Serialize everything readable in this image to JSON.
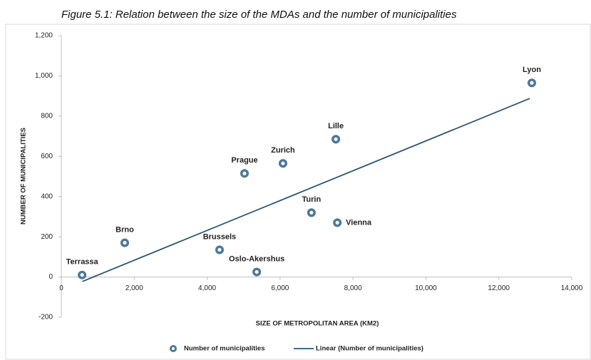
{
  "chart_data": {
    "type": "scatter",
    "title": "Figure 5.1: Relation between the size of the MDAs and the number of municipalities",
    "x_label": "SIZE OF METROPOLITAN AREA (KM2)",
    "y_label": "NUMBER OF MUNICIPALITIES",
    "series": [
      {
        "name": "Number of municipalities",
        "color": "#4f7898",
        "labels": [
          "Terrassa",
          "Brno",
          "Brussels",
          "Oslo-Akershus",
          "Prague",
          "Zurich",
          "Turin",
          "Lille",
          "Vienna",
          "Lyon"
        ],
        "x": [
          570,
          1740,
          4340,
          5360,
          5025,
          6080,
          6860,
          7530,
          7570,
          12905
        ],
        "values": [
          10,
          170,
          135,
          25,
          515,
          565,
          320,
          685,
          270,
          965
        ]
      }
    ],
    "trendline": {
      "name": "Linear (Number of municipalities)",
      "color": "#2e5673",
      "x": [
        580,
        12850
      ],
      "values": [
        -22,
        888
      ]
    },
    "xlim": [
      0,
      14000
    ],
    "xticks": [
      0,
      {
        "value": 2000,
        "label": "2,000"
      },
      {
        "value": 4000,
        "label": "4,000"
      },
      {
        "value": 6000,
        "label": "6,000"
      },
      {
        "value": 8000,
        "label": "8,000"
      },
      {
        "value": 10000,
        "label": "10,000"
      },
      {
        "value": 12000,
        "label": "12,000"
      },
      {
        "value": 14000,
        "label": "14,000"
      }
    ],
    "ylim": [
      -200,
      1200
    ],
    "yticks": [
      -200,
      0,
      200,
      400,
      600,
      800,
      {
        "value": 1000,
        "label": "1,000"
      },
      {
        "value": 1200,
        "label": "1,200"
      }
    ],
    "grid": false,
    "legend": "bottom"
  }
}
